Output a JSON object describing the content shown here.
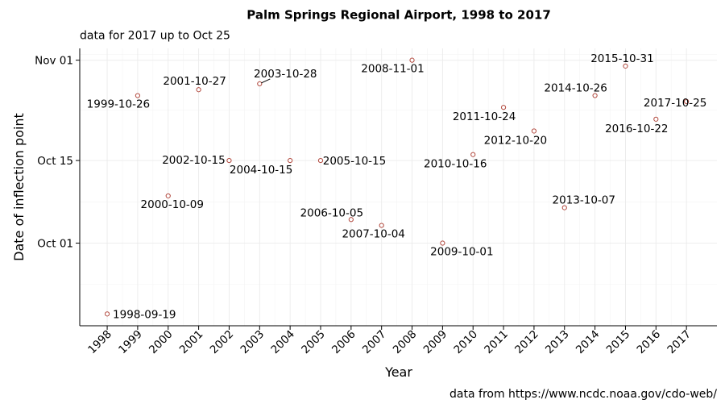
{
  "chart_data": {
    "type": "scatter",
    "title": "Palm Springs Regional Airport, 1998 to 2017",
    "subtitle": "data for 2017 up to Oct 25",
    "caption": "data from https://www.ncdc.noaa.gov/cdo-web/",
    "xlabel": "Year",
    "ylabel": "Date of inflection point",
    "x_ticks": [
      "1998",
      "1999",
      "2000",
      "2001",
      "2002",
      "2003",
      "2004",
      "2005",
      "2006",
      "2007",
      "2008",
      "2009",
      "2010",
      "2011",
      "2012",
      "2013",
      "2014",
      "2015",
      "2016",
      "2017"
    ],
    "y_ticks": [
      "Oct 01",
      "Oct 15",
      "Nov 01"
    ],
    "xlim": [
      1997.1,
      2018
    ],
    "ylim": [
      "1998-09-17",
      "1998-11-03"
    ],
    "grid": true,
    "point_color": "#b24a3f",
    "points": [
      {
        "year": 1998,
        "date": "1998-09-19",
        "label": "1998-09-19"
      },
      {
        "year": 1999,
        "date": "1999-10-26",
        "label": "1999-10-26"
      },
      {
        "year": 2000,
        "date": "2000-10-09",
        "label": "2000-10-09"
      },
      {
        "year": 2001,
        "date": "2001-10-27",
        "label": "2001-10-27"
      },
      {
        "year": 2002,
        "date": "2002-10-15",
        "label": "2002-10-15"
      },
      {
        "year": 2003,
        "date": "2003-10-28",
        "label": "2003-10-28"
      },
      {
        "year": 2004,
        "date": "2004-10-15",
        "label": "2004-10-15"
      },
      {
        "year": 2005,
        "date": "2005-10-15",
        "label": "2005-10-15"
      },
      {
        "year": 2006,
        "date": "2006-10-05",
        "label": "2006-10-05"
      },
      {
        "year": 2007,
        "date": "2007-10-04",
        "label": "2007-10-04"
      },
      {
        "year": 2008,
        "date": "2008-11-01",
        "label": "2008-11-01"
      },
      {
        "year": 2009,
        "date": "2009-10-01",
        "label": "2009-10-01"
      },
      {
        "year": 2010,
        "date": "2010-10-16",
        "label": "2010-10-16"
      },
      {
        "year": 2011,
        "date": "2011-10-24",
        "label": "2011-10-24"
      },
      {
        "year": 2012,
        "date": "2012-10-20",
        "label": "2012-10-20"
      },
      {
        "year": 2013,
        "date": "2013-10-07",
        "label": "2013-10-07"
      },
      {
        "year": 2014,
        "date": "2014-10-26",
        "label": "2014-10-26"
      },
      {
        "year": 2015,
        "date": "2015-10-31",
        "label": "2015-10-31"
      },
      {
        "year": 2016,
        "date": "2016-10-22",
        "label": "2016-10-22"
      },
      {
        "year": 2017,
        "date": "2017-10-25",
        "label": "2017-10-25"
      }
    ]
  }
}
